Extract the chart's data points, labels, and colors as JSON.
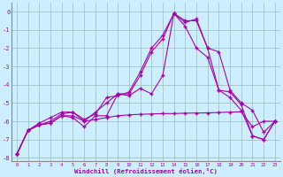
{
  "xlabel": "Windchill (Refroidissement éolien,°C)",
  "ylabel": "",
  "xlim": [
    -0.5,
    23.5
  ],
  "ylim": [
    -8.2,
    0.5
  ],
  "xtick_labels": [
    "0",
    "1",
    "2",
    "3",
    "4",
    "5",
    "6",
    "7",
    "8",
    "9",
    "10",
    "11",
    "12",
    "13",
    "14",
    "15",
    "16",
    "17",
    "18",
    "19",
    "20",
    "21",
    "22",
    "23"
  ],
  "yticks": [
    0,
    -1,
    -2,
    -3,
    -4,
    -5,
    -6,
    -7,
    -8
  ],
  "bg_color": "#cceeff",
  "line_color": "#aa00aa",
  "grid_color": "#99bbbb",
  "line1_x": [
    0,
    1,
    2,
    3,
    4,
    5,
    6,
    7,
    8,
    9,
    10,
    11,
    12,
    13,
    14,
    15,
    16,
    17,
    18,
    19,
    20,
    21,
    22,
    23
  ],
  "line1_y": [
    -7.8,
    -6.5,
    -6.2,
    -6.1,
    -5.7,
    -5.7,
    -6.0,
    -5.9,
    -5.8,
    -5.7,
    -5.65,
    -5.62,
    -5.6,
    -5.58,
    -5.58,
    -5.56,
    -5.55,
    -5.54,
    -5.52,
    -5.5,
    -5.48,
    -6.3,
    -6.0,
    -6.0
  ],
  "line2_x": [
    0,
    1,
    2,
    3,
    4,
    5,
    6,
    7,
    8,
    9,
    10,
    11,
    12,
    13,
    14,
    15,
    16,
    17,
    18,
    19,
    20,
    21,
    22,
    23
  ],
  "line2_y": [
    -7.8,
    -6.5,
    -6.2,
    -6.0,
    -5.6,
    -5.5,
    -5.9,
    -5.6,
    -4.7,
    -4.6,
    -4.4,
    -3.3,
    -2.0,
    -1.3,
    -0.1,
    -0.8,
    -2.0,
    -2.5,
    -4.3,
    -4.7,
    -5.4,
    -6.8,
    -7.0,
    -6.0
  ],
  "line3_x": [
    0,
    1,
    2,
    3,
    4,
    5,
    6,
    7,
    8,
    9,
    10,
    11,
    12,
    13,
    14,
    15,
    16,
    17,
    18,
    19,
    20,
    21,
    22,
    23
  ],
  "line3_y": [
    -7.8,
    -6.5,
    -6.1,
    -5.8,
    -5.5,
    -5.5,
    -6.0,
    -5.5,
    -5.0,
    -4.5,
    -4.5,
    -3.5,
    -2.2,
    -1.5,
    -0.1,
    -0.5,
    -0.5,
    -2.0,
    -2.2,
    -4.3,
    -5.0,
    -5.4,
    -6.6,
    -6.0
  ],
  "line4_x": [
    0,
    1,
    2,
    3,
    4,
    5,
    6,
    7,
    8,
    9,
    10,
    11,
    12,
    13,
    14,
    15,
    16,
    17,
    18,
    19,
    20,
    21,
    22,
    23
  ],
  "line4_y": [
    -7.8,
    -6.5,
    -6.2,
    -6.1,
    -5.7,
    -5.8,
    -6.3,
    -5.7,
    -5.7,
    -4.5,
    -4.6,
    -4.2,
    -4.5,
    -3.5,
    -0.1,
    -0.6,
    -0.4,
    -2.0,
    -4.3,
    -4.4,
    -5.1,
    -6.8,
    -7.0,
    -6.0
  ]
}
